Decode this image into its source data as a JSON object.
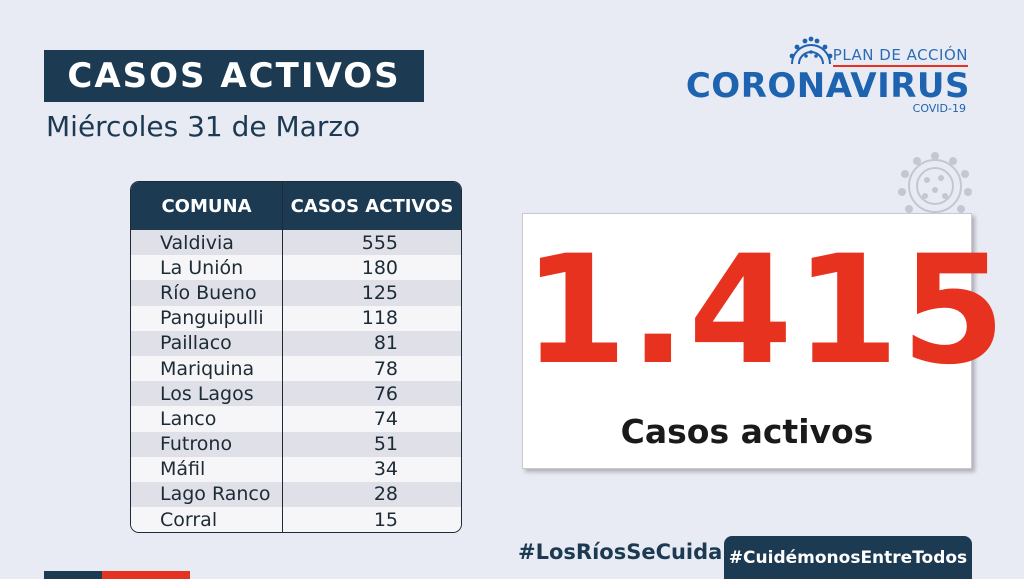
{
  "header": {
    "title": "CASOS ACTIVOS",
    "date": "Miércoles 31 de Marzo"
  },
  "logo": {
    "plan": "PLAN DE ACCIÓN",
    "name": "CORONAVIRUS",
    "sub": "COVID-19",
    "icon": "virus-icon"
  },
  "table": {
    "headers": [
      "COMUNA",
      "CASOS ACTIVOS"
    ],
    "rows": [
      {
        "comuna": "Valdivia",
        "casos": "555"
      },
      {
        "comuna": "La Unión",
        "casos": "180"
      },
      {
        "comuna": "Río Bueno",
        "casos": "125"
      },
      {
        "comuna": "Panguipulli",
        "casos": "118"
      },
      {
        "comuna": "Paillaco",
        "casos": "81"
      },
      {
        "comuna": "Mariquina",
        "casos": "78"
      },
      {
        "comuna": "Los Lagos",
        "casos": "76"
      },
      {
        "comuna": "Lanco",
        "casos": "74"
      },
      {
        "comuna": "Futrono",
        "casos": "51"
      },
      {
        "comuna": "Máfil",
        "casos": "34"
      },
      {
        "comuna": "Lago Ranco",
        "casos": "28"
      },
      {
        "comuna": "Corral",
        "casos": "15"
      }
    ]
  },
  "summary": {
    "total": "1.415",
    "label": "Casos activos"
  },
  "footer": {
    "hashtag1": "#LosRíosSeCuida",
    "hashtag2": "#CuidémonosEntreTodos"
  },
  "colors": {
    "navy": "#1c3a52",
    "red": "#e73220",
    "blue": "#1d63b0",
    "background": "#e9ebf4"
  }
}
